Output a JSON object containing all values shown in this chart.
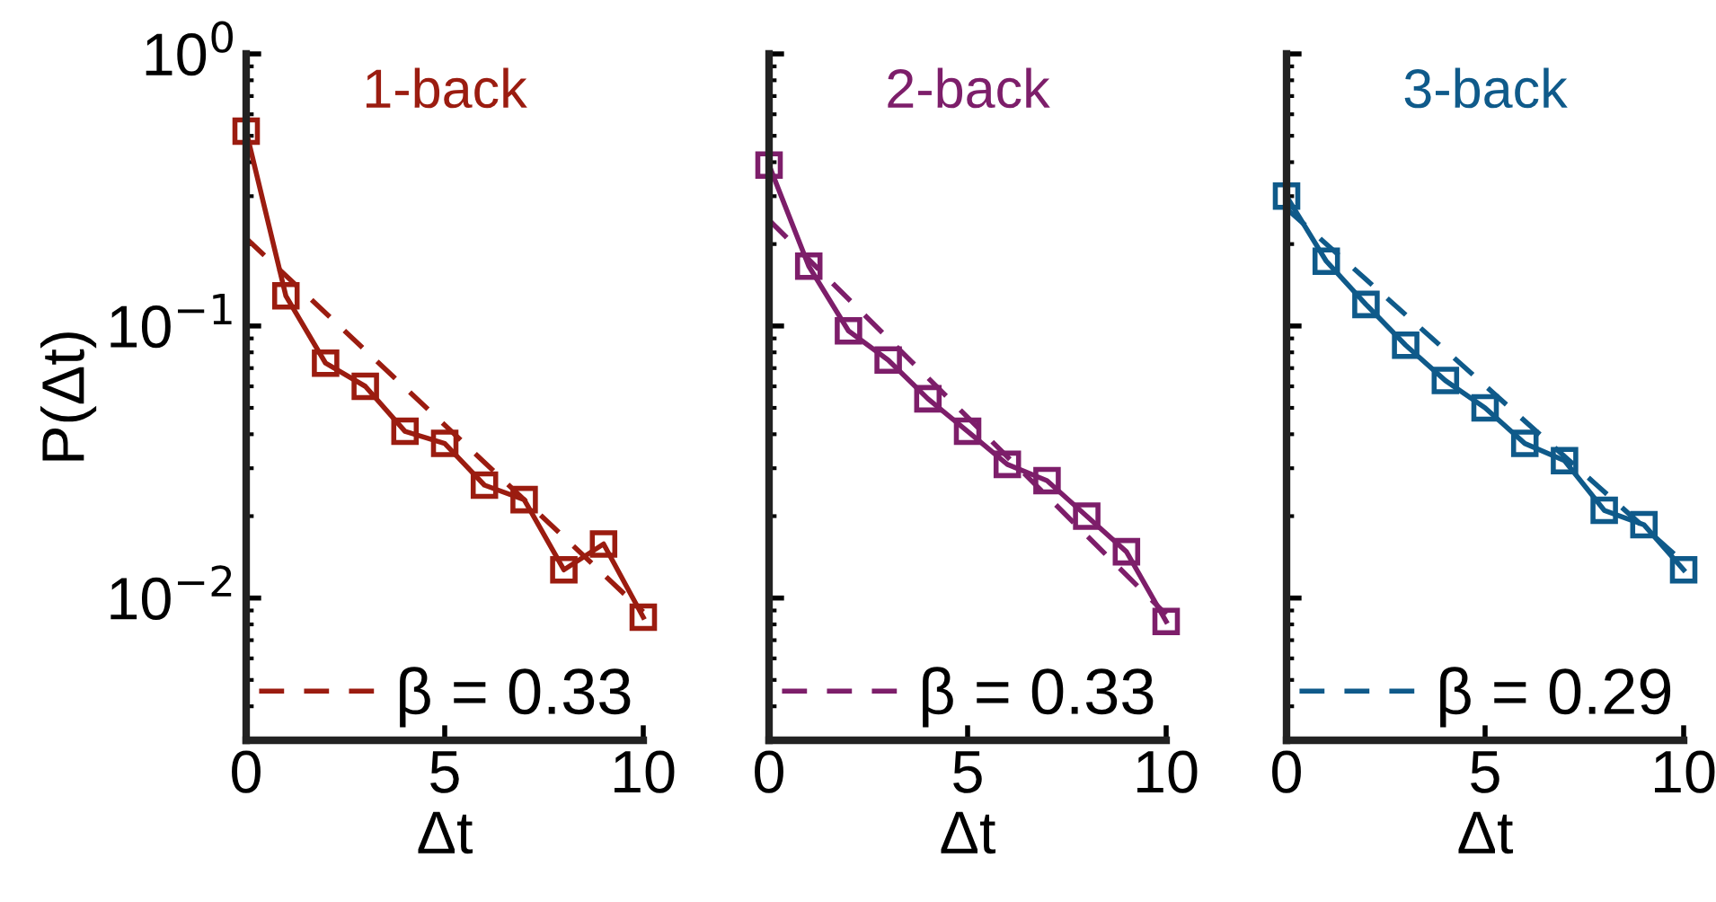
{
  "chart_data": [
    {
      "type": "line",
      "title": "1-back",
      "xlabel": "Δt",
      "ylabel": "P(Δt)",
      "log": "y",
      "grid": false,
      "legend": "bottom left",
      "xlim": [
        0,
        10
      ],
      "xticks": [
        0,
        5,
        10
      ],
      "ylim": [
        0.003,
        1
      ],
      "yticks": [
        {
          "value": 0.01,
          "label": "10$^{−2}$"
        },
        {
          "value": 0.1,
          "label": "10$^{−1}$"
        },
        {
          "value": 1,
          "label": "10$^{0}$"
        }
      ],
      "series": [
        {
          "x": [
            0,
            1,
            2,
            3,
            4,
            5,
            6,
            7,
            8,
            9,
            10
          ],
          "values": [
            0.52,
            0.129,
            0.073,
            0.06,
            0.041,
            0.037,
            0.026,
            0.023,
            0.0127,
            0.0158,
            0.0085
          ],
          "color": "#9b1c10",
          "marker": "square",
          "line_style": "solid"
        },
        {
          "name": "β = 0.33",
          "x": [
            0,
            10
          ],
          "values": [
            0.21,
            0.0089
          ],
          "color": "#9b1c10",
          "marker": "none",
          "line_style": "dashed"
        }
      ]
    },
    {
      "type": "line",
      "title": "2-back",
      "xlabel": "Δt",
      "log": "y",
      "grid": false,
      "legend": "bottom left",
      "tick_labels": "x",
      "xlim": [
        0,
        10
      ],
      "xticks": [
        0,
        5,
        10
      ],
      "ylim": [
        0.003,
        1
      ],
      "yticks": [
        {
          "value": 0.01,
          "label": null
        },
        {
          "value": 0.1,
          "label": null
        },
        {
          "value": 1,
          "label": null
        }
      ],
      "series": [
        {
          "x": [
            0,
            1,
            2,
            3,
            4,
            5,
            6,
            7,
            8,
            9,
            10
          ],
          "values": [
            0.39,
            0.166,
            0.096,
            0.075,
            0.054,
            0.041,
            0.031,
            0.027,
            0.02,
            0.0148,
            0.0082
          ],
          "color": "#7d1e6a",
          "marker": "square",
          "line_style": "solid"
        },
        {
          "name": "β = 0.33",
          "x": [
            0,
            10
          ],
          "values": [
            0.245,
            0.0087
          ],
          "color": "#7d1e6a",
          "marker": "none",
          "line_style": "dashed"
        }
      ]
    },
    {
      "type": "line",
      "title": "3-back",
      "xlabel": "Δt",
      "log": "y",
      "grid": false,
      "legend": "bottom left",
      "tick_labels": "x",
      "xlim": [
        0,
        10
      ],
      "xticks": [
        0,
        5,
        10
      ],
      "ylim": [
        0.003,
        1
      ],
      "yticks": [
        {
          "value": 0.01,
          "label": null
        },
        {
          "value": 0.1,
          "label": null
        },
        {
          "value": 1,
          "label": null
        }
      ],
      "series": [
        {
          "x": [
            0,
            1,
            2,
            3,
            4,
            5,
            6,
            7,
            8,
            9,
            10
          ],
          "values": [
            0.3,
            0.173,
            0.12,
            0.085,
            0.063,
            0.05,
            0.037,
            0.032,
            0.021,
            0.0186,
            0.0127
          ],
          "color": "#0f5a8a",
          "marker": "square",
          "line_style": "solid"
        },
        {
          "name": "β = 0.29",
          "x": [
            0,
            10
          ],
          "values": [
            0.27,
            0.0135
          ],
          "color": "#0f5a8a",
          "marker": "none",
          "line_style": "dashed"
        }
      ]
    }
  ]
}
